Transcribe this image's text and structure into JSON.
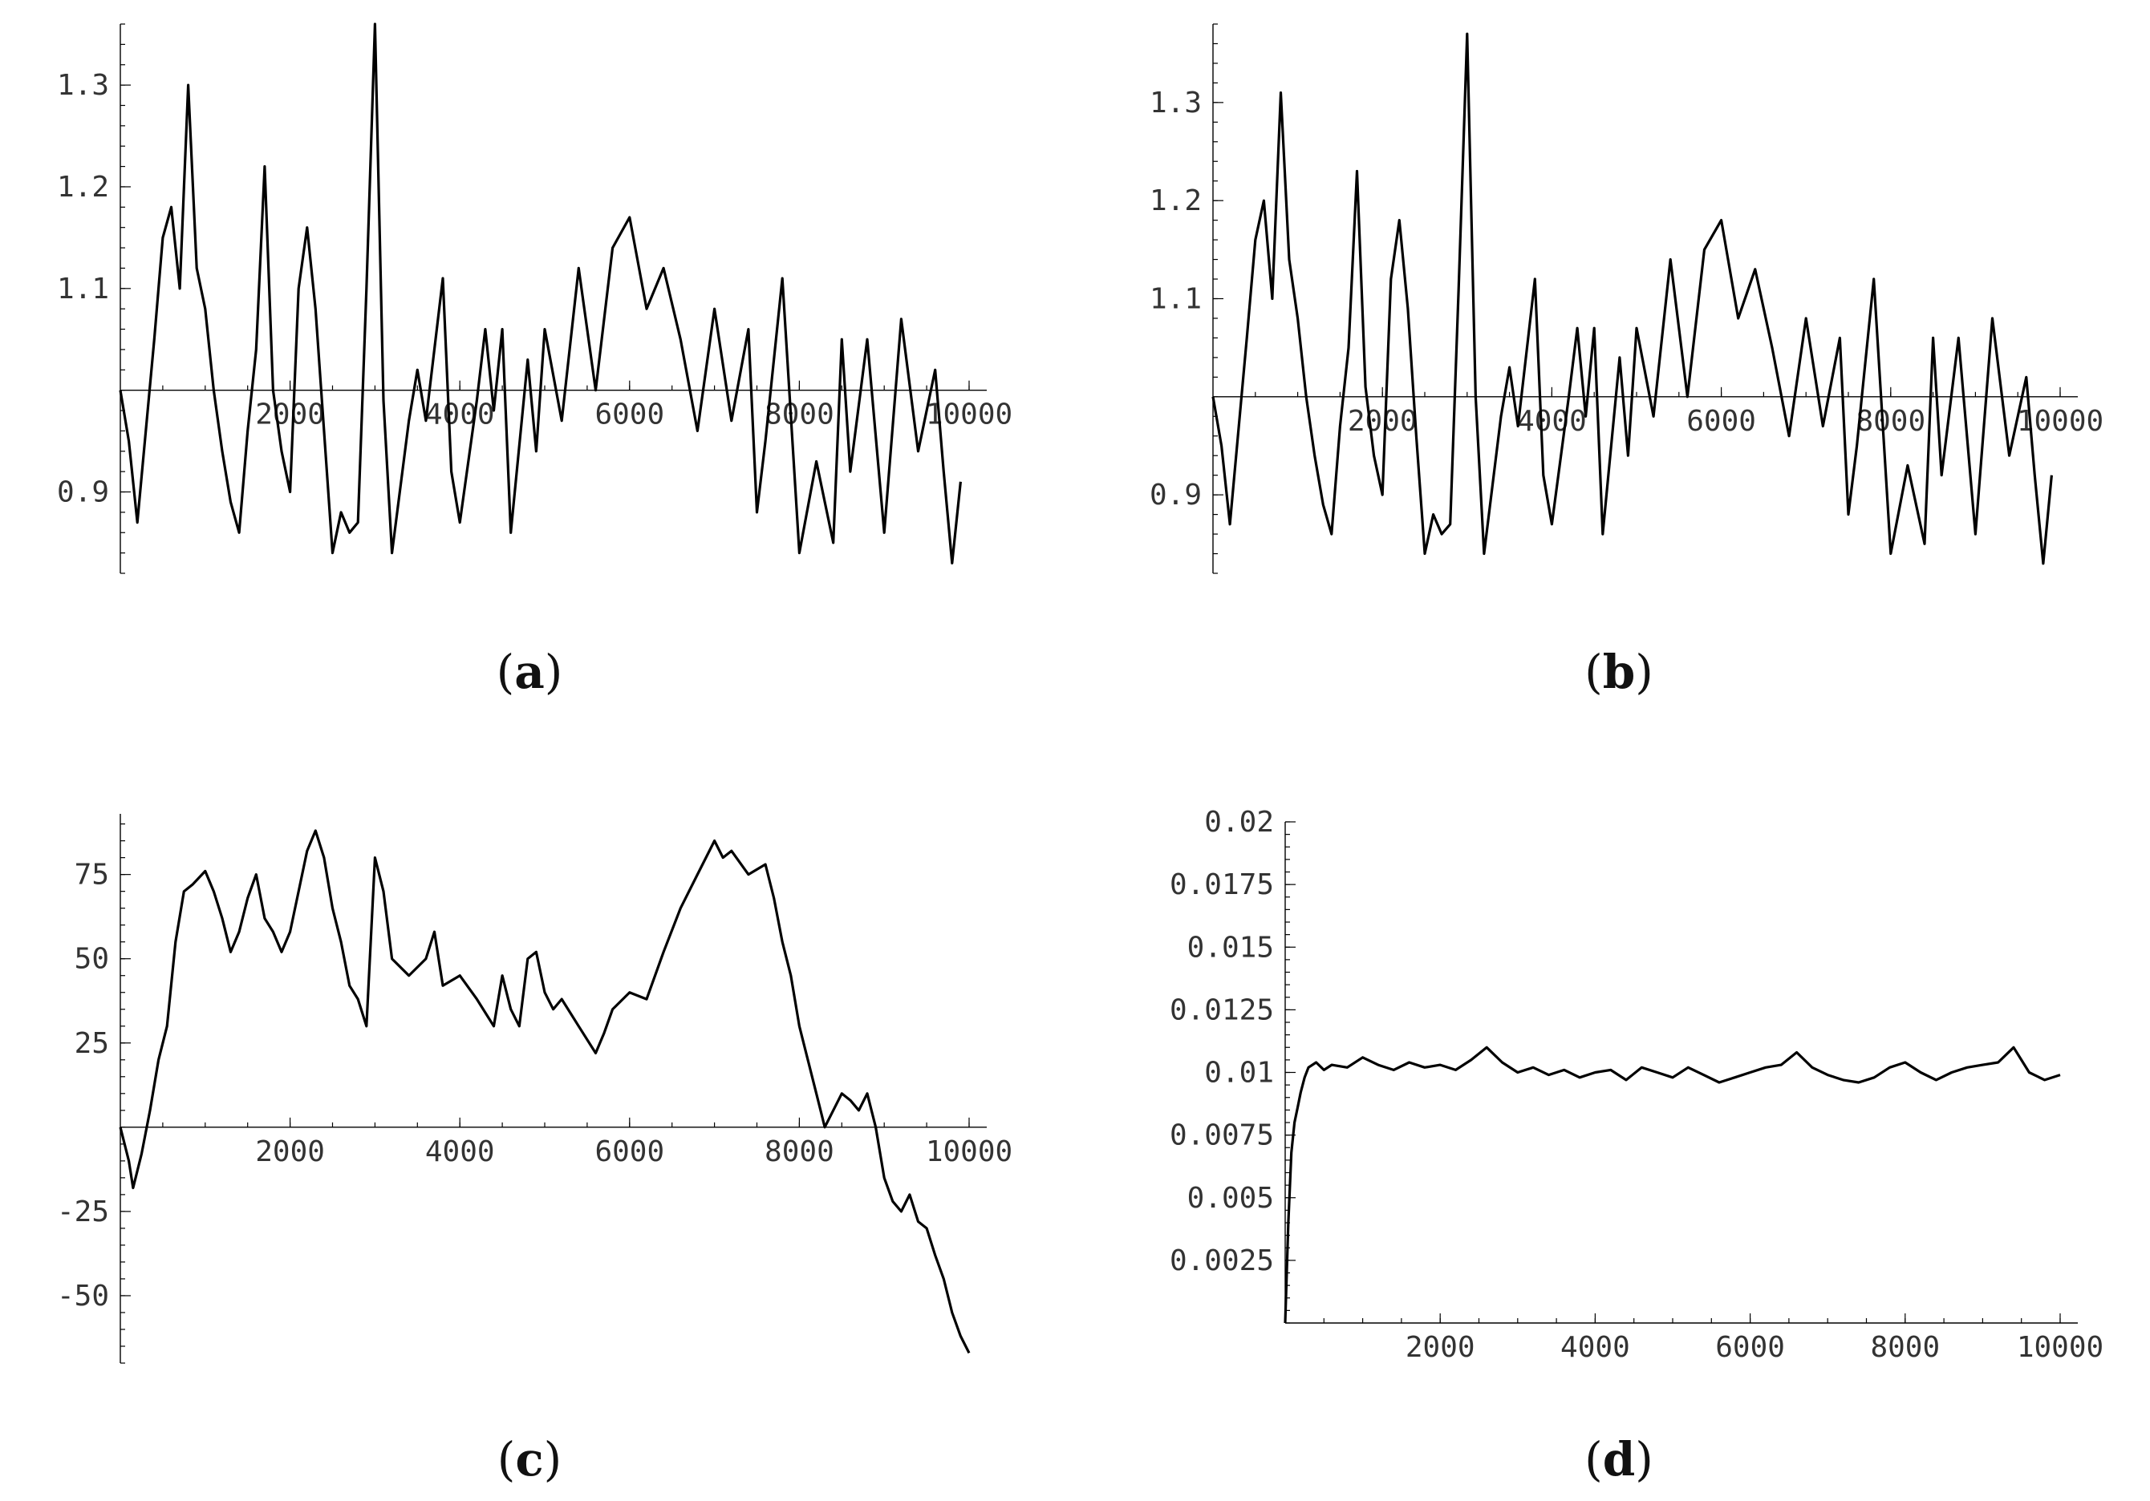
{
  "chart_data": [
    {
      "panel": "(a)",
      "type": "line",
      "xlim": [
        0,
        10000
      ],
      "ylim": [
        0.82,
        1.36
      ],
      "x_axis_crossing_y": 1.0,
      "x_ticks": [
        2000,
        4000,
        6000,
        8000,
        10000
      ],
      "x_tick_labels": [
        "2000",
        "4000",
        "6000",
        "8000",
        "10000"
      ],
      "y_ticks": [
        0.9,
        1.1,
        1.2,
        1.3
      ],
      "y_tick_labels": [
        "0.9",
        "1.1",
        "1.2",
        "1.3"
      ],
      "series": [
        {
          "x": [
            0,
            100,
            200,
            400,
            500,
            600,
            700,
            800,
            900,
            1000,
            1100,
            1200,
            1300,
            1400,
            1500,
            1600,
            1700,
            1800,
            1900,
            2000,
            2100,
            2200,
            2300,
            2400,
            2500,
            2600,
            2700,
            2800,
            2900,
            3000,
            3100,
            3200,
            3400,
            3500,
            3600,
            3800,
            3900,
            4000,
            4200,
            4300,
            4400,
            4500,
            4600,
            4800,
            4900,
            5000,
            5200,
            5400,
            5500,
            5600,
            5800,
            6000,
            6200,
            6400,
            6600,
            6800,
            7000,
            7200,
            7400,
            7500,
            7600,
            7800,
            8000,
            8200,
            8400,
            8500,
            8600,
            8800,
            9000,
            9200,
            9400,
            9600,
            9700,
            9800,
            9900
          ],
          "y": [
            1.0,
            0.95,
            0.87,
            1.05,
            1.15,
            1.18,
            1.1,
            1.3,
            1.12,
            1.08,
            1.0,
            0.94,
            0.89,
            0.86,
            0.96,
            1.04,
            1.22,
            1.0,
            0.94,
            0.9,
            1.1,
            1.16,
            1.08,
            0.96,
            0.84,
            0.88,
            0.86,
            0.87,
            1.1,
            1.36,
            0.99,
            0.84,
            0.97,
            1.02,
            0.97,
            1.11,
            0.92,
            0.87,
            0.99,
            1.06,
            0.98,
            1.06,
            0.86,
            1.03,
            0.94,
            1.06,
            0.97,
            1.12,
            1.06,
            1.0,
            1.14,
            1.17,
            1.08,
            1.12,
            1.05,
            0.96,
            1.08,
            0.97,
            1.06,
            0.88,
            0.95,
            1.11,
            0.84,
            0.93,
            0.85,
            1.05,
            0.92,
            1.05,
            0.86,
            1.07,
            0.94,
            1.02,
            0.92,
            0.83,
            0.91
          ]
        }
      ]
    },
    {
      "panel": "(b)",
      "type": "line",
      "xlim": [
        0,
        10000
      ],
      "ylim": [
        0.82,
        1.38
      ],
      "x_axis_crossing_y": 1.0,
      "x_ticks": [
        2000,
        4000,
        6000,
        8000,
        10000
      ],
      "x_tick_labels": [
        "2000",
        "4000",
        "6000",
        "8000",
        "10000"
      ],
      "y_ticks": [
        0.9,
        1.1,
        1.2,
        1.3
      ],
      "y_tick_labels": [
        "0.9",
        "1.1",
        "1.2",
        "1.3"
      ],
      "series": [
        {
          "x": [
            0,
            100,
            200,
            400,
            500,
            600,
            700,
            800,
            900,
            1000,
            1100,
            1200,
            1300,
            1400,
            1500,
            1600,
            1700,
            1800,
            1900,
            2000,
            2100,
            2200,
            2300,
            2400,
            2500,
            2600,
            2700,
            2800,
            2900,
            3000,
            3100,
            3200,
            3400,
            3500,
            3600,
            3800,
            3900,
            4000,
            4200,
            4300,
            4400,
            4500,
            4600,
            4800,
            4900,
            5000,
            5200,
            5400,
            5500,
            5600,
            5800,
            6000,
            6200,
            6400,
            6600,
            6800,
            7000,
            7200,
            7400,
            7500,
            7600,
            7800,
            8000,
            8200,
            8400,
            8500,
            8600,
            8800,
            9000,
            9200,
            9400,
            9600,
            9700,
            9800,
            9900
          ],
          "y": [
            1.0,
            0.95,
            0.87,
            1.06,
            1.16,
            1.2,
            1.1,
            1.31,
            1.14,
            1.08,
            1.0,
            0.94,
            0.89,
            0.86,
            0.97,
            1.05,
            1.23,
            1.01,
            0.94,
            0.9,
            1.12,
            1.18,
            1.09,
            0.96,
            0.84,
            0.88,
            0.86,
            0.87,
            1.11,
            1.37,
            1.0,
            0.84,
            0.98,
            1.03,
            0.97,
            1.12,
            0.92,
            0.87,
            1.0,
            1.07,
            0.98,
            1.07,
            0.86,
            1.04,
            0.94,
            1.07,
            0.98,
            1.14,
            1.07,
            1.0,
            1.15,
            1.18,
            1.08,
            1.13,
            1.05,
            0.96,
            1.08,
            0.97,
            1.06,
            0.88,
            0.95,
            1.12,
            0.84,
            0.93,
            0.85,
            1.06,
            0.92,
            1.06,
            0.86,
            1.08,
            0.94,
            1.02,
            0.92,
            0.83,
            0.92
          ]
        }
      ]
    },
    {
      "panel": "(c)",
      "type": "line",
      "xlim": [
        0,
        10000
      ],
      "ylim": [
        -70,
        93
      ],
      "x_axis_crossing_y": 0,
      "x_ticks": [
        2000,
        4000,
        6000,
        8000,
        10000
      ],
      "x_tick_labels": [
        "2000",
        "4000",
        "6000",
        "8000",
        "10000"
      ],
      "y_ticks": [
        -50,
        -25,
        25,
        50,
        75
      ],
      "y_tick_labels": [
        "-50",
        "-25",
        "25",
        "50",
        "75"
      ],
      "series": [
        {
          "x": [
            0,
            100,
            150,
            250,
            350,
            450,
            550,
            650,
            750,
            850,
            1000,
            1100,
            1200,
            1300,
            1400,
            1500,
            1600,
            1700,
            1800,
            1900,
            2000,
            2100,
            2200,
            2300,
            2400,
            2500,
            2600,
            2700,
            2800,
            2900,
            3000,
            3100,
            3200,
            3400,
            3600,
            3700,
            3800,
            4000,
            4200,
            4400,
            4500,
            4600,
            4700,
            4800,
            4900,
            5000,
            5100,
            5200,
            5400,
            5600,
            5700,
            5800,
            6000,
            6200,
            6400,
            6600,
            6800,
            6900,
            7000,
            7100,
            7200,
            7400,
            7600,
            7700,
            7800,
            7900,
            8000,
            8100,
            8200,
            8300,
            8400,
            8500,
            8600,
            8700,
            8800,
            8900,
            9000,
            9100,
            9200,
            9300,
            9400,
            9500,
            9600,
            9700,
            9800,
            9900,
            10000
          ],
          "y": [
            0,
            -10,
            -18,
            -8,
            5,
            20,
            30,
            55,
            70,
            72,
            76,
            70,
            62,
            52,
            58,
            68,
            75,
            62,
            58,
            52,
            58,
            70,
            82,
            88,
            80,
            65,
            55,
            42,
            38,
            30,
            80,
            70,
            50,
            45,
            50,
            58,
            42,
            45,
            38,
            30,
            45,
            35,
            30,
            50,
            52,
            40,
            35,
            38,
            30,
            22,
            28,
            35,
            40,
            38,
            52,
            65,
            75,
            80,
            85,
            80,
            82,
            75,
            78,
            68,
            55,
            45,
            30,
            20,
            10,
            0,
            5,
            10,
            8,
            5,
            10,
            0,
            -15,
            -22,
            -25,
            -20,
            -28,
            -30,
            -38,
            -45,
            -55,
            -62,
            -67
          ]
        }
      ]
    },
    {
      "panel": "(d)",
      "type": "line",
      "xlim": [
        0,
        10000
      ],
      "ylim": [
        0,
        0.02
      ],
      "x_axis_crossing_y": 0,
      "x_ticks": [
        2000,
        4000,
        6000,
        8000,
        10000
      ],
      "x_tick_labels": [
        "2000",
        "4000",
        "6000",
        "8000",
        "10000"
      ],
      "y_ticks": [
        0.0025,
        0.005,
        0.0075,
        0.01,
        0.0125,
        0.015,
        0.0175,
        0.02
      ],
      "y_tick_labels": [
        "0.0025",
        "0.005",
        "0.0075",
        "0.01",
        "0.0125",
        "0.015",
        "0.0175",
        "0.02"
      ],
      "series": [
        {
          "x": [
            0,
            40,
            80,
            120,
            160,
            200,
            250,
            300,
            400,
            500,
            600,
            800,
            1000,
            1200,
            1400,
            1600,
            1800,
            2000,
            2200,
            2400,
            2600,
            2800,
            3000,
            3200,
            3400,
            3600,
            3800,
            4000,
            4200,
            4400,
            4600,
            4800,
            5000,
            5200,
            5400,
            5600,
            5800,
            6000,
            6200,
            6400,
            6600,
            6800,
            7000,
            7200,
            7400,
            7600,
            7800,
            8000,
            8200,
            8400,
            8600,
            8800,
            9000,
            9200,
            9400,
            9500,
            9600,
            9800,
            10000
          ],
          "y": [
            0,
            0.004,
            0.0068,
            0.008,
            0.0086,
            0.0092,
            0.0098,
            0.0102,
            0.0104,
            0.0101,
            0.0103,
            0.0102,
            0.0106,
            0.0103,
            0.0101,
            0.0104,
            0.0102,
            0.0103,
            0.0101,
            0.0105,
            0.011,
            0.0104,
            0.01,
            0.0102,
            0.0099,
            0.0101,
            0.0098,
            0.01,
            0.0101,
            0.0097,
            0.0102,
            0.01,
            0.0098,
            0.0102,
            0.0099,
            0.0096,
            0.0098,
            0.01,
            0.0102,
            0.0103,
            0.0108,
            0.0102,
            0.0099,
            0.0097,
            0.0096,
            0.0098,
            0.0102,
            0.0104,
            0.01,
            0.0097,
            0.01,
            0.0102,
            0.0103,
            0.0104,
            0.011,
            0.0105,
            0.01,
            0.0097,
            0.0099
          ]
        }
      ]
    }
  ]
}
